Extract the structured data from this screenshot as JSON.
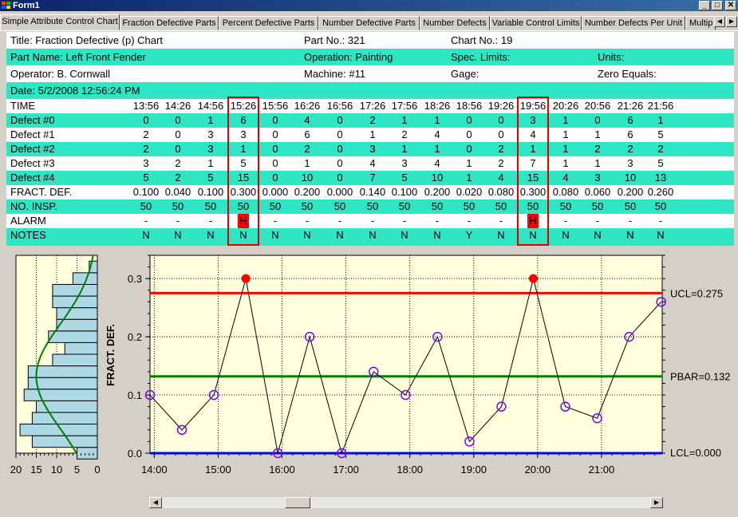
{
  "window": {
    "title": "Form1",
    "minimize": "_",
    "maximize": "□",
    "close": "✕"
  },
  "tabs": [
    "Simple Attribute Control Chart",
    "Fraction Defective Parts",
    "Percent Defective Parts",
    "Number Defective Parts",
    "Number Defects",
    "Variable Control Limits",
    "Number Defects Per Unit",
    "Multip"
  ],
  "tab_scroll": {
    "left": "◀",
    "right": "▶"
  },
  "header": {
    "title": "Title: Fraction Defective (p) Chart",
    "part_no": "Part No.: 321",
    "chart_no": "Chart No.: 19",
    "part_name": "Part Name: Left Front Fender",
    "operation": "Operation: Painting",
    "spec_limits": "Spec. Limits:",
    "units": "Units:",
    "operator": "Operator: B. Cornwall",
    "machine": "Machine: #11",
    "gage": "Gage:",
    "zero_equals": "Zero Equals:",
    "date": "Date: 5/2/2008 12:56:24 PM"
  },
  "table": {
    "times": [
      "13:56",
      "14:26",
      "14:56",
      "15:26",
      "15:56",
      "16:26",
      "16:56",
      "17:26",
      "17:56",
      "18:26",
      "18:56",
      "19:26",
      "19:56",
      "20:26",
      "20:56",
      "21:26",
      "21:56"
    ],
    "rows": [
      {
        "label": "TIME",
        "values": []
      },
      {
        "label": "Defect #0",
        "values": [
          "0",
          "0",
          "1",
          "6",
          "0",
          "4",
          "0",
          "2",
          "1",
          "1",
          "0",
          "0",
          "3",
          "1",
          "0",
          "6",
          "1"
        ]
      },
      {
        "label": "Defect #1",
        "values": [
          "2",
          "0",
          "3",
          "3",
          "0",
          "6",
          "0",
          "1",
          "2",
          "4",
          "0",
          "0",
          "4",
          "1",
          "1",
          "6",
          "5"
        ]
      },
      {
        "label": "Defect #2",
        "values": [
          "2",
          "0",
          "3",
          "1",
          "0",
          "2",
          "0",
          "3",
          "1",
          "1",
          "0",
          "2",
          "1",
          "1",
          "2",
          "2",
          "2"
        ]
      },
      {
        "label": "Defect #3",
        "values": [
          "3",
          "2",
          "1",
          "5",
          "0",
          "1",
          "0",
          "4",
          "3",
          "4",
          "1",
          "2",
          "7",
          "1",
          "1",
          "3",
          "5"
        ]
      },
      {
        "label": "Defect #4",
        "values": [
          "5",
          "2",
          "5",
          "15",
          "0",
          "10",
          "0",
          "7",
          "5",
          "10",
          "1",
          "4",
          "15",
          "4",
          "3",
          "10",
          "13"
        ]
      },
      {
        "label": "FRACT. DEF.",
        "values": [
          "0.100",
          "0.040",
          "0.100",
          "0.300",
          "0.000",
          "0.200",
          "0.000",
          "0.140",
          "0.100",
          "0.200",
          "0.020",
          "0.080",
          "0.300",
          "0.080",
          "0.060",
          "0.200",
          "0.260"
        ]
      },
      {
        "label": "NO. INSP.",
        "values": [
          "50",
          "50",
          "50",
          "50",
          "50",
          "50",
          "50",
          "50",
          "50",
          "50",
          "50",
          "50",
          "50",
          "50",
          "50",
          "50",
          "50"
        ]
      },
      {
        "label": "ALARM",
        "values": [
          "-",
          "-",
          "-",
          "H",
          "-",
          "-",
          "-",
          "-",
          "-",
          "-",
          "-",
          "-",
          "H",
          "-",
          "-",
          "-",
          "-"
        ]
      },
      {
        "label": "NOTES",
        "values": [
          "N",
          "N",
          "N",
          "N",
          "N",
          "N",
          "N",
          "N",
          "N",
          "N",
          "Y",
          "N",
          "N",
          "N",
          "N",
          "N",
          "N"
        ]
      }
    ],
    "alarm_columns": [
      3,
      12
    ]
  },
  "chart_data": {
    "type": "scatter",
    "ylabel": "FRACT. DEF.",
    "ylim": [
      0,
      0.34
    ],
    "y_ticks": [
      "0.0",
      "0.1",
      "0.2",
      "0.3"
    ],
    "x_ticks": [
      "14:00",
      "15:00",
      "16:00",
      "17:00",
      "18:00",
      "19:00",
      "20:00",
      "21:00"
    ],
    "x_minutes": [
      836,
      866,
      896,
      926,
      956,
      986,
      1016,
      1046,
      1076,
      1106,
      1136,
      1166,
      1196,
      1226,
      1256,
      1286,
      1316
    ],
    "x_range_minutes": [
      836,
      1317
    ],
    "values": [
      0.1,
      0.04,
      0.1,
      0.3,
      0.0,
      0.2,
      0.0,
      0.14,
      0.1,
      0.2,
      0.02,
      0.08,
      0.3,
      0.08,
      0.06,
      0.2,
      0.26
    ],
    "ucl": 0.275,
    "pbar": 0.132,
    "lcl": 0.0,
    "ucl_label": "UCL=0.275",
    "pbar_label": "PBAR=0.132",
    "lcl_label": "LCL=0.000",
    "colors": {
      "plot_bg": "#ffffdd",
      "ucl": "#ff0000",
      "pbar": "#008000",
      "lcl": "#0000ff",
      "marker": "#8000ff",
      "alarm_marker": "#ff0000"
    },
    "histogram": {
      "x_ticks": [
        "20",
        "15",
        "10",
        "5",
        "0"
      ],
      "xlim": [
        0,
        20
      ],
      "bin_centers": [
        0.0,
        0.02,
        0.04,
        0.06,
        0.08,
        0.1,
        0.12,
        0.14,
        0.16,
        0.18,
        0.2,
        0.22,
        0.24,
        0.26,
        0.28,
        0.3,
        0.32
      ],
      "counts": [
        5,
        16,
        19,
        16,
        15,
        18,
        17,
        17,
        11,
        8,
        12,
        10,
        10,
        11,
        11,
        6,
        2
      ],
      "bar_color": "#add8e6",
      "curve_color": "#008000"
    }
  },
  "scrollbar": {
    "left": "◀",
    "right": "▶"
  }
}
